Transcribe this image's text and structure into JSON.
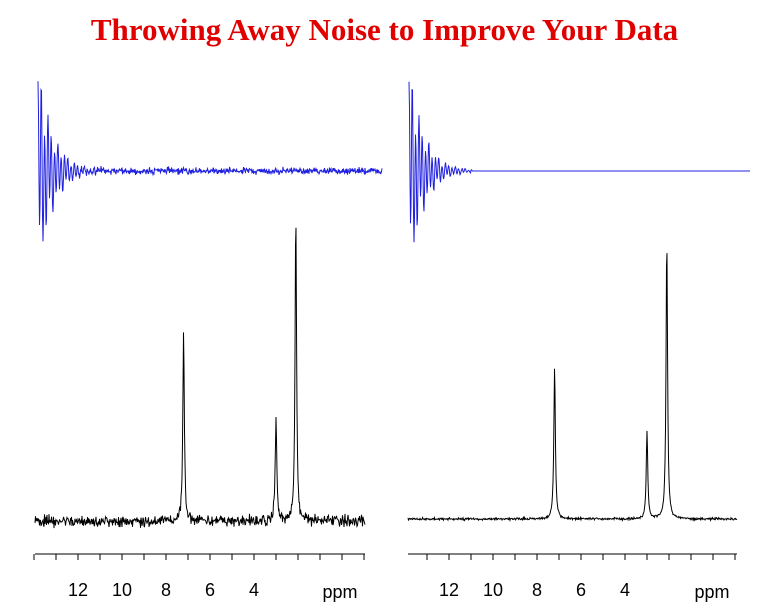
{
  "title": "Throwing Away Noise to Improve Your Data",
  "colors": {
    "title": "#e00000",
    "fid": "#2020e0",
    "spectrum": "#000000"
  },
  "chart_data": [
    {
      "type": "line",
      "name_hint": "left panel: noisy FID and spectrum",
      "fid": {
        "decay_extent": "full",
        "noise": "high",
        "truncated": false
      },
      "spectrum": {
        "xlabel": "ppm",
        "x_direction": "reversed",
        "ticks": [
          "12",
          "10",
          "8",
          "6",
          "4"
        ],
        "peaks": [
          {
            "ppm": 7.2,
            "height": 0.62
          },
          {
            "ppm": 3.0,
            "height": 0.35
          },
          {
            "ppm": 2.1,
            "height": 1.0
          }
        ],
        "noise": "high"
      }
    },
    {
      "type": "line",
      "name_hint": "right panel: truncated FID and spectrum",
      "fid": {
        "decay_extent": "short",
        "noise": "low",
        "truncated": true
      },
      "spectrum": {
        "xlabel": "ppm",
        "x_direction": "reversed",
        "ticks": [
          "12",
          "10",
          "8",
          "6",
          "4"
        ],
        "peaks": [
          {
            "ppm": 7.2,
            "height": 0.52
          },
          {
            "ppm": 3.0,
            "height": 0.3
          },
          {
            "ppm": 2.1,
            "height": 0.96
          }
        ],
        "noise": "low"
      }
    }
  ]
}
